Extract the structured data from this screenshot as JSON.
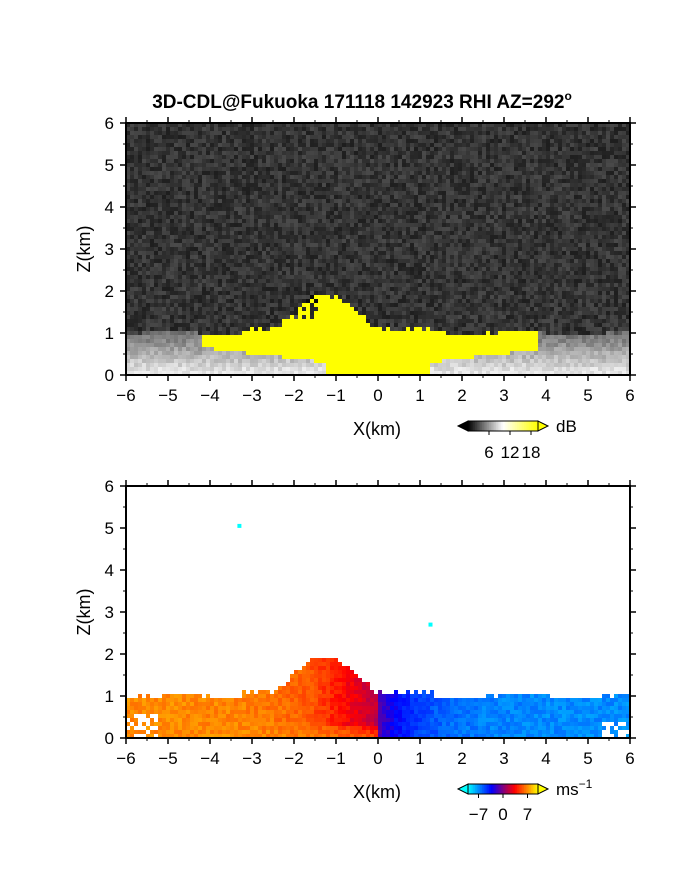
{
  "title": "3D-CDL@Fukuoka 171118 142923 RHI AZ=292",
  "title_degree_mark": "o",
  "chart_data": [
    {
      "type": "heatmap",
      "panel": "top",
      "quantity": "signal (dB)",
      "xlabel": "X(km)",
      "ylabel": "Z(km)",
      "xlim": [
        -6,
        6
      ],
      "ylim": [
        0,
        6
      ],
      "xticks": [
        "-6",
        "-5",
        "-4",
        "-3",
        "-2",
        "-1",
        "0",
        "1",
        "2",
        "3",
        "4",
        "5",
        "6"
      ],
      "yticks": [
        "0",
        "1",
        "2",
        "3",
        "4",
        "5",
        "6"
      ],
      "colorbar": {
        "unit": "dB",
        "ticks": [
          "6",
          "12",
          "18"
        ],
        "tick_values": [
          6,
          12,
          18
        ],
        "range": [
          0,
          20
        ],
        "colors": [
          "#000000",
          "#ffffff",
          "#ffff00"
        ]
      },
      "features": {
        "background": "noisy dark gray above ~1 km",
        "boundary_layer_top_km": 1.0,
        "high_signal_region_color": "#ffff00",
        "high_signal_x_range_km": [
          -4.2,
          3.8
        ],
        "plume_peak_km": {
          "x": -2.0,
          "z": 2.2
        }
      }
    },
    {
      "type": "heatmap",
      "panel": "bottom",
      "quantity": "Doppler velocity",
      "xlabel": "X(km)",
      "ylabel": "Z(km)",
      "xlim": [
        -6,
        6
      ],
      "ylim": [
        0,
        6
      ],
      "xticks": [
        "-6",
        "-5",
        "-4",
        "-3",
        "-2",
        "-1",
        "0",
        "1",
        "2",
        "3",
        "4",
        "5",
        "6"
      ],
      "yticks": [
        "0",
        "1",
        "2",
        "3",
        "4",
        "5",
        "6"
      ],
      "colorbar": {
        "unit": "ms",
        "unit_exponent": "−1",
        "ticks": [
          "−7",
          "0",
          "7"
        ],
        "tick_values": [
          -7,
          0,
          7
        ],
        "range": [
          -10,
          10
        ],
        "colors": [
          "#00ffff",
          "#0000ff",
          "#ff0000",
          "#ffff00"
        ]
      },
      "features": {
        "left_side_velocity_sign": "positive (warm colors)",
        "right_side_velocity_sign": "negative (blue colors)",
        "layer_top_km": 1.1,
        "plume_peak_km": {
          "x": -2.0,
          "z": 2.3
        },
        "isolated_points_km": [
          {
            "x": -3.3,
            "z": 5.05
          },
          {
            "x": 1.25,
            "z": 2.7
          }
        ]
      }
    }
  ]
}
